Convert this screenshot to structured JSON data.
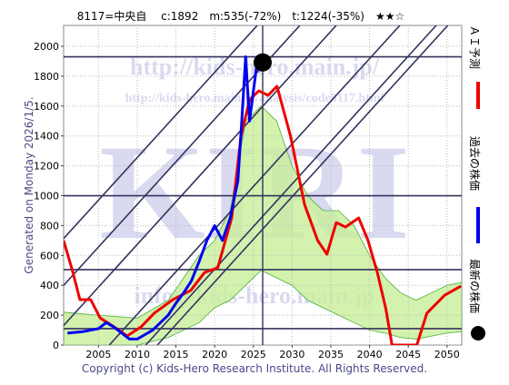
{
  "chart_data": {
    "type": "line",
    "title": "8117=中央自　 c:1892　m:535(-72%)　t:1224(-35%)　★★☆",
    "left_note": "Generated on Monday 2026/1/5.",
    "footer": "Copyright (c) Kids-Hero Research Institute. All Rights Reserved.",
    "watermarks": [
      "http://kids-hero.main.jp/",
      "http://kids-hero.main.jp/analysis/code8117.html",
      "KIRI",
      "info@kids-hero.main.jp"
    ],
    "xlim": [
      2000.5,
      2051.9
    ],
    "ylim": [
      0,
      2140
    ],
    "xticks": [
      2005,
      2010,
      2015,
      2020,
      2025,
      2030,
      2035,
      2040,
      2045,
      2050
    ],
    "yticks": [
      0,
      200,
      400,
      600,
      800,
      1000,
      1200,
      1400,
      1600,
      1800,
      2000
    ],
    "grid": true,
    "hlines": [
      1930,
      1000,
      505,
      110
    ],
    "hline_color": "#33335e",
    "vline": 2026.2,
    "trend_lines": [
      {
        "x": [
          1988,
          2025.5
        ],
        "y": [
          0,
          2140
        ]
      },
      {
        "x": [
          1993.5,
          2031
        ],
        "y": [
          0,
          2140
        ]
      },
      {
        "x": [
          1998.2,
          2035.7
        ],
        "y": [
          0,
          2140
        ]
      },
      {
        "x": [
          2006.4,
          2043.9
        ],
        "y": [
          0,
          2140
        ]
      },
      {
        "x": [
          2011.1,
          2048.6
        ],
        "y": [
          0,
          2140
        ]
      },
      {
        "x": [
          2012.6,
          2050.1
        ],
        "y": [
          0,
          2140
        ]
      }
    ],
    "band": {
      "color": "#c8ef9a",
      "x": [
        2000.5,
        2005,
        2010,
        2014,
        2018,
        2020,
        2022,
        2024,
        2026,
        2028,
        2030,
        2032,
        2034,
        2036,
        2038,
        2040,
        2042,
        2044,
        2046,
        2048,
        2050,
        2051.9
      ],
      "upper": [
        220,
        200,
        180,
        300,
        600,
        700,
        900,
        1500,
        1600,
        1500,
        1200,
        1000,
        900,
        900,
        800,
        600,
        450,
        350,
        300,
        350,
        400,
        420
      ],
      "lower": [
        0,
        0,
        0,
        50,
        150,
        250,
        300,
        400,
        500,
        450,
        400,
        300,
        250,
        200,
        150,
        100,
        80,
        50,
        40,
        60,
        80,
        90
      ]
    },
    "series": [
      {
        "name": "ＡＩ予測",
        "color": "#ee0000",
        "x": [
          2000.5,
          2001.7,
          2002.6,
          2004.0,
          2005.2,
          2007.0,
          2008.7,
          2010.5,
          2012.2,
          2014.6,
          2016.9,
          2018.7,
          2020.4,
          2022.2,
          2023.4,
          2024.5,
          2025.7,
          2026.9,
          2028.05,
          2029.8,
          2031.6,
          2033.3,
          2034.5,
          2035.7,
          2036.9,
          2038.6,
          2039.8,
          2041.0,
          2042.1,
          2042.9,
          2046.1,
          2047.4,
          2049.7,
          2051.8
        ],
        "values": [
          700,
          486,
          304,
          304,
          182,
          122,
          61,
          122,
          213,
          304,
          365,
          486,
          517,
          851,
          1398,
          1641,
          1702,
          1672,
          1732,
          1398,
          942,
          700,
          608,
          820,
          790,
          851,
          700,
          486,
          243,
          0,
          0,
          213,
          334,
          395
        ]
      },
      {
        "name": "過去の株価",
        "color": "#0000ee",
        "x": [
          2001,
          2002,
          2003,
          2004,
          2005,
          2006,
          2007,
          2008,
          2009,
          2010,
          2011,
          2012,
          2013,
          2014,
          2015,
          2016,
          2017,
          2018,
          2019,
          2020,
          2021,
          2022,
          2023,
          2023.5,
          2024,
          2024.5,
          2025,
          2025.5,
          2026
        ],
        "values": [
          80,
          85,
          90,
          100,
          110,
          150,
          120,
          80,
          40,
          40,
          70,
          100,
          150,
          200,
          280,
          350,
          430,
          560,
          700,
          800,
          700,
          850,
          1100,
          1500,
          1930,
          1500,
          1700,
          1900,
          1892
        ]
      },
      {
        "name": "最新の株価",
        "color": "#000000",
        "x": [
          2026.2
        ],
        "values": [
          1892
        ]
      }
    ]
  }
}
